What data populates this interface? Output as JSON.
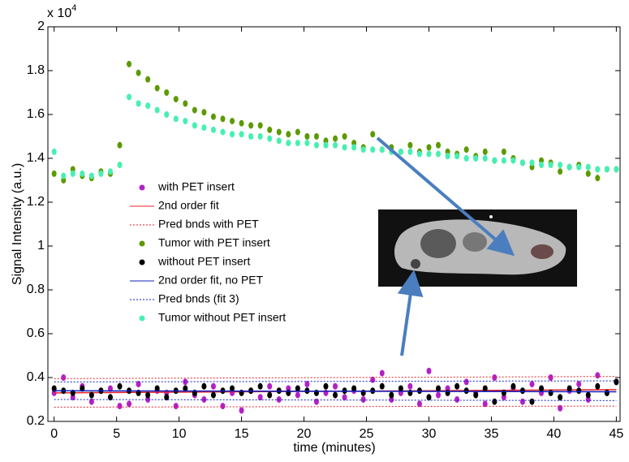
{
  "chart_data": {
    "type": "scatter",
    "xlabel": "time (minutes)",
    "ylabel": "Signal Intensity (a.u.)",
    "y_scale_label": {
      "base": "x 10",
      "exponent": "4"
    },
    "xlim": [
      -0.5,
      45.3
    ],
    "ylim": [
      0.2,
      2
    ],
    "xticks": [
      0,
      5,
      10,
      15,
      20,
      25,
      30,
      35,
      40,
      45
    ],
    "yticks": [
      0.2,
      0.4,
      0.6,
      0.8,
      1,
      1.2,
      1.4,
      1.6,
      1.8,
      2
    ],
    "x": [
      0,
      0.75,
      1.5,
      2.25,
      3,
      3.75,
      4.5,
      5.25,
      6,
      6.75,
      7.5,
      8.25,
      9,
      9.75,
      10.5,
      11.25,
      12,
      12.75,
      13.5,
      14.25,
      15,
      15.75,
      16.5,
      17.25,
      18,
      18.75,
      19.5,
      20.25,
      21,
      21.75,
      22.5,
      23.25,
      24,
      24.75,
      25.5,
      26.25,
      27,
      27.75,
      28.5,
      29.25,
      30,
      30.75,
      31.5,
      32.25,
      33,
      33.75,
      34.5,
      35.25,
      36,
      36.75,
      37.5,
      38.25,
      39,
      39.75,
      40.5,
      41.25,
      42,
      42.75,
      43.5,
      44.25,
      45
    ],
    "series": [
      {
        "name": "with PET insert",
        "kind": "scatter",
        "color": "#b420c8",
        "values": [
          0.33,
          0.4,
          0.31,
          0.36,
          0.29,
          0.34,
          0.35,
          0.27,
          0.28,
          0.37,
          0.3,
          0.34,
          0.33,
          0.27,
          0.38,
          0.32,
          0.3,
          0.36,
          0.27,
          0.33,
          0.25,
          0.34,
          0.31,
          0.36,
          0.3,
          0.35,
          0.32,
          0.37,
          0.29,
          0.33,
          0.36,
          0.31,
          0.34,
          0.3,
          0.39,
          0.42,
          0.3,
          0.33,
          0.36,
          0.28,
          0.43,
          0.32,
          0.35,
          0.3,
          0.38,
          0.33,
          0.28,
          0.4,
          0.31,
          0.35,
          0.29,
          0.37,
          0.33,
          0.4,
          0.26,
          0.34,
          0.37,
          0.3,
          0.41,
          0.33,
          0.38
        ]
      },
      {
        "name": "2nd order fit",
        "kind": "fit",
        "color": "#e8202a",
        "x": [
          0,
          45
        ],
        "values": [
          0.33,
          0.345
        ]
      },
      {
        "name": "Pred bnds with PET",
        "kind": "bounds",
        "color": "#e8202a",
        "x": [
          0,
          45
        ],
        "values": [
          0.395,
          0.405
        ],
        "lower": [
          0.265,
          0.27
        ]
      },
      {
        "name": "Tumor with PET insert",
        "kind": "scatter",
        "color": "#5b9a00",
        "values": [
          1.33,
          1.3,
          1.35,
          1.32,
          1.31,
          1.34,
          1.33,
          1.46,
          1.83,
          1.79,
          1.76,
          1.72,
          1.7,
          1.67,
          1.65,
          1.62,
          1.61,
          1.59,
          1.58,
          1.57,
          1.56,
          1.55,
          1.55,
          1.53,
          1.52,
          1.51,
          1.52,
          1.5,
          1.5,
          1.48,
          1.49,
          1.5,
          1.47,
          1.45,
          1.51,
          1.44,
          1.45,
          1.43,
          1.46,
          1.43,
          1.45,
          1.46,
          1.43,
          1.42,
          1.44,
          1.41,
          1.43,
          1.39,
          1.43,
          1.4,
          1.38,
          1.36,
          1.39,
          1.38,
          1.34,
          1.36,
          1.37,
          1.33,
          1.31,
          1.35,
          1.35
        ]
      },
      {
        "name": "without PET insert",
        "kind": "scatter",
        "color": "#000000",
        "values": [
          0.35,
          0.34,
          0.33,
          0.35,
          0.32,
          0.34,
          0.31,
          0.36,
          0.34,
          0.33,
          0.32,
          0.35,
          0.31,
          0.34,
          0.35,
          0.33,
          0.36,
          0.32,
          0.34,
          0.35,
          0.33,
          0.34,
          0.36,
          0.32,
          0.34,
          0.33,
          0.35,
          0.34,
          0.33,
          0.36,
          0.32,
          0.34,
          0.35,
          0.33,
          0.34,
          0.36,
          0.32,
          0.35,
          0.33,
          0.34,
          0.31,
          0.35,
          0.33,
          0.36,
          0.34,
          0.32,
          0.35,
          0.29,
          0.33,
          0.36,
          0.34,
          0.29,
          0.35,
          0.33,
          0.31,
          0.35,
          0.34,
          0.32,
          0.36,
          0.33,
          0.38
        ]
      },
      {
        "name": "2nd order fit, no PET",
        "kind": "fit",
        "color": "#1020c0",
        "x": [
          0,
          45
        ],
        "values": [
          0.34,
          0.335
        ]
      },
      {
        "name": "Pred bnds (fit 3)",
        "kind": "bounds",
        "color": "#1020c0",
        "x": [
          0,
          45
        ],
        "values": [
          0.38,
          0.385
        ],
        "lower": [
          0.3,
          0.295
        ]
      },
      {
        "name": "Tumor without PET insert",
        "kind": "scatter",
        "color": "#45f0b0",
        "values": [
          1.43,
          1.32,
          1.33,
          1.33,
          1.32,
          1.33,
          1.34,
          1.37,
          1.68,
          1.65,
          1.64,
          1.62,
          1.6,
          1.58,
          1.57,
          1.55,
          1.54,
          1.53,
          1.52,
          1.51,
          1.51,
          1.5,
          1.5,
          1.49,
          1.48,
          1.47,
          1.47,
          1.47,
          1.46,
          1.46,
          1.46,
          1.45,
          1.45,
          1.44,
          1.44,
          1.44,
          1.43,
          1.43,
          1.43,
          1.42,
          1.42,
          1.42,
          1.41,
          1.41,
          1.4,
          1.4,
          1.4,
          1.39,
          1.39,
          1.39,
          1.38,
          1.38,
          1.37,
          1.37,
          1.37,
          1.36,
          1.36,
          1.36,
          1.35,
          1.35,
          1.35
        ]
      }
    ]
  }
}
